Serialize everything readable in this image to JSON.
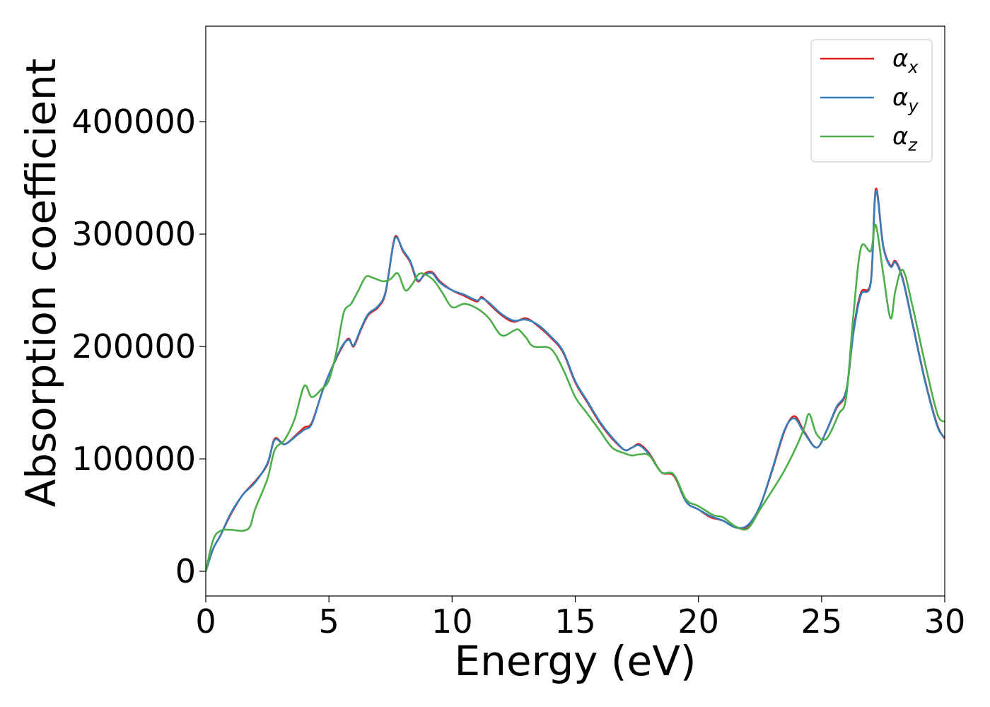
{
  "chart_data": {
    "type": "line",
    "title": "",
    "xlabel": "Energy (eV)",
    "ylabel": "Absorption coefficient",
    "xlim": [
      0,
      30
    ],
    "ylim": [
      -22000,
      485000
    ],
    "xticks": [
      0,
      5,
      10,
      15,
      20,
      25,
      30
    ],
    "yticks": [
      0,
      100000,
      200000,
      300000,
      400000
    ],
    "grid": false,
    "legend_position": "top-right",
    "series": [
      {
        "name": "α_x",
        "legend_base": "α",
        "legend_sub": "x",
        "color": "#e41a1c",
        "x": [
          0,
          0.3,
          0.6,
          1,
          1.5,
          2,
          2.5,
          2.8,
          3.2,
          3.7,
          4,
          4.3,
          4.7,
          5,
          5.5,
          5.8,
          6,
          6.3,
          6.6,
          7,
          7.3,
          7.6,
          7.75,
          8,
          8.3,
          8.6,
          8.9,
          9.2,
          9.5,
          10,
          10.5,
          11,
          11.2,
          11.5,
          12,
          12.5,
          13,
          13.5,
          14,
          14.5,
          15,
          15.5,
          16,
          16.5,
          17,
          17.3,
          17.6,
          18,
          18.5,
          19,
          19.5,
          20,
          20.5,
          21,
          21.5,
          22,
          22.5,
          23,
          23.5,
          23.9,
          24.3,
          24.8,
          25.2,
          25.6,
          26,
          26.3,
          26.6,
          27,
          27.2,
          27.5,
          27.8,
          28,
          28.3,
          28.7,
          29.2,
          29.7,
          30
        ],
        "values": [
          0,
          20000,
          32000,
          50000,
          68000,
          80000,
          95000,
          118000,
          113000,
          122000,
          128000,
          132000,
          158000,
          175000,
          198000,
          207000,
          200000,
          215000,
          228000,
          235000,
          248000,
          290000,
          298000,
          285000,
          275000,
          258000,
          265000,
          266000,
          258000,
          250000,
          245000,
          240000,
          244000,
          238000,
          228000,
          222000,
          225000,
          218000,
          208000,
          195000,
          168000,
          150000,
          132000,
          118000,
          108000,
          110000,
          113000,
          105000,
          88000,
          85000,
          62000,
          55000,
          48000,
          45000,
          39000,
          40000,
          58000,
          90000,
          125000,
          138000,
          124000,
          110000,
          125000,
          145000,
          160000,
          215000,
          248000,
          258000,
          340000,
          290000,
          272000,
          276000,
          260000,
          220000,
          170000,
          130000,
          118000
        ]
      },
      {
        "name": "α_y",
        "legend_base": "α",
        "legend_sub": "y",
        "color": "#377eb8",
        "x": [
          0,
          0.3,
          0.6,
          1,
          1.5,
          2,
          2.5,
          2.8,
          3.2,
          3.7,
          4,
          4.3,
          4.7,
          5,
          5.5,
          5.8,
          6,
          6.3,
          6.6,
          7,
          7.3,
          7.6,
          7.75,
          8,
          8.3,
          8.6,
          8.9,
          9.2,
          9.5,
          10,
          10.5,
          11,
          11.2,
          11.5,
          12,
          12.5,
          13,
          13.5,
          14,
          14.5,
          15,
          15.5,
          16,
          16.5,
          17,
          17.3,
          17.6,
          18,
          18.5,
          19,
          19.5,
          20,
          20.5,
          21,
          21.5,
          22,
          22.5,
          23,
          23.5,
          23.9,
          24.3,
          24.8,
          25.2,
          25.6,
          26,
          26.3,
          26.6,
          27,
          27.2,
          27.5,
          27.8,
          28,
          28.3,
          28.7,
          29.2,
          29.7,
          30
        ],
        "values": [
          0,
          20000,
          32000,
          51000,
          68000,
          79000,
          96000,
          117000,
          113000,
          121000,
          126000,
          131000,
          158000,
          175000,
          199000,
          206000,
          201000,
          216000,
          229000,
          236000,
          249000,
          289000,
          297000,
          286000,
          276000,
          259000,
          264000,
          265000,
          257000,
          250000,
          246000,
          241000,
          243000,
          239000,
          229000,
          223000,
          224000,
          219000,
          209000,
          196000,
          169000,
          151000,
          133000,
          119000,
          108000,
          110000,
          112000,
          104000,
          88000,
          86000,
          62000,
          55000,
          49000,
          45000,
          39000,
          41000,
          58000,
          91000,
          126000,
          136000,
          123000,
          110000,
          125000,
          146000,
          161000,
          213000,
          246000,
          257000,
          338000,
          289000,
          271000,
          275000,
          259000,
          219000,
          169000,
          129000,
          119000
        ]
      },
      {
        "name": "α_z",
        "legend_base": "α",
        "legend_sub": "z",
        "color": "#4daf4a",
        "x": [
          0,
          0.3,
          0.6,
          1,
          1.5,
          1.8,
          2,
          2.5,
          2.8,
          3.2,
          3.6,
          4,
          4.3,
          4.7,
          5,
          5.3,
          5.6,
          5.9,
          6.2,
          6.5,
          6.8,
          7.2,
          7.5,
          7.8,
          8.1,
          8.4,
          8.7,
          9.2,
          9.6,
          10,
          10.5,
          11,
          11.5,
          12,
          12.5,
          12.7,
          13,
          13.3,
          14,
          14.5,
          15,
          15.5,
          16,
          16.5,
          17,
          17.3,
          17.6,
          18,
          18.5,
          19,
          19.5,
          20,
          20.6,
          21,
          21.5,
          22,
          22.5,
          23,
          23.5,
          24,
          24.3,
          24.5,
          24.8,
          25.2,
          25.7,
          26,
          26.3,
          26.6,
          27,
          27.2,
          27.5,
          27.8,
          28,
          28.3,
          28.7,
          29.2,
          29.7,
          30
        ],
        "values": [
          0,
          28000,
          36000,
          37000,
          36000,
          40000,
          55000,
          82000,
          108000,
          117000,
          135000,
          165000,
          155000,
          162000,
          170000,
          195000,
          230000,
          238000,
          250000,
          262000,
          261000,
          258000,
          260000,
          265000,
          250000,
          256000,
          265000,
          260000,
          248000,
          235000,
          238000,
          234000,
          225000,
          210000,
          214000,
          215000,
          208000,
          200000,
          198000,
          180000,
          155000,
          140000,
          125000,
          110000,
          105000,
          103000,
          104000,
          103000,
          88000,
          86000,
          64000,
          58000,
          50000,
          48000,
          40000,
          38000,
          55000,
          72000,
          90000,
          112000,
          128000,
          140000,
          122000,
          118000,
          140000,
          155000,
          230000,
          288000,
          285000,
          308000,
          265000,
          225000,
          250000,
          268000,
          235000,
          185000,
          140000,
          133000
        ]
      }
    ]
  }
}
